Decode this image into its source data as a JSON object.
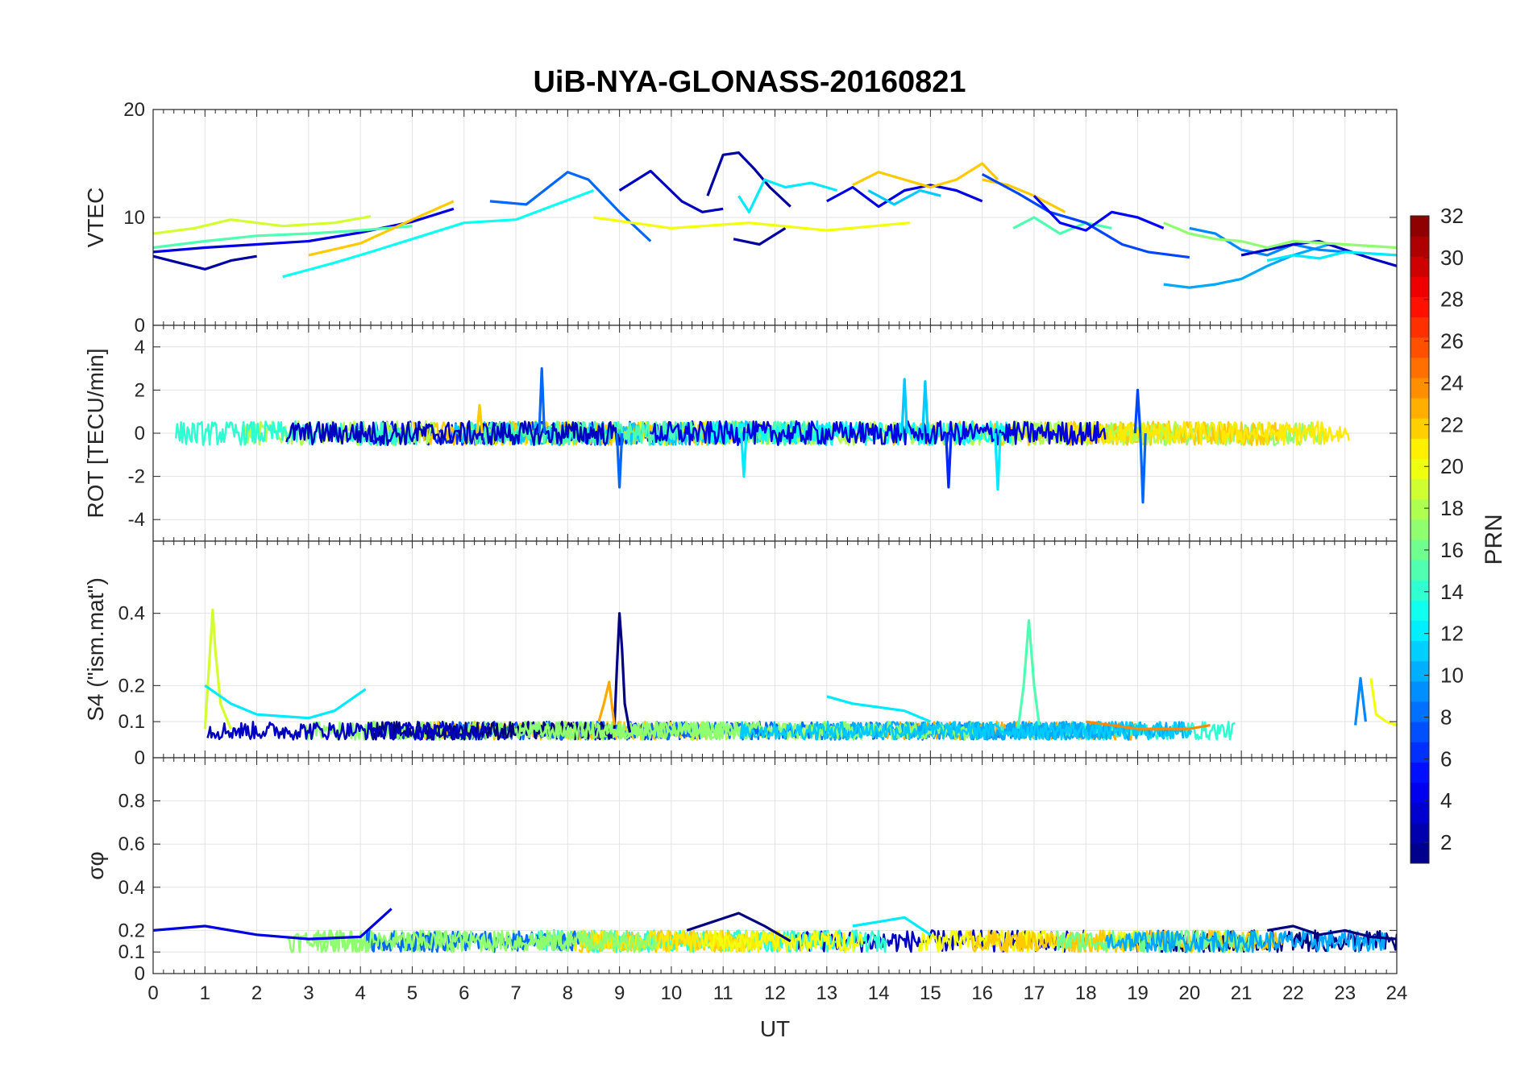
{
  "title": "UiB-NYA-GLONASS-20160821",
  "colorbar": {
    "label": "PRN",
    "ticks": [
      "2",
      "4",
      "6",
      "8",
      "10",
      "12",
      "14",
      "16",
      "18",
      "20",
      "22",
      "24",
      "26",
      "28",
      "30",
      "32"
    ],
    "range": [
      1,
      32
    ],
    "colormap": "jet"
  },
  "chart_data": [
    {
      "type": "line",
      "panel": "vtec",
      "title": "UiB-NYA-GLONASS-20160821",
      "xlabel": "",
      "ylabel": "VTEC",
      "xlim": [
        0,
        24
      ],
      "ylim": [
        0,
        20
      ],
      "yticks": [
        "0",
        "10",
        "20"
      ],
      "grid": true,
      "series": [
        {
          "prn": 2,
          "x": [
            0,
            0.5,
            1,
            1.5,
            2
          ],
          "y": [
            6.4,
            5.8,
            5.2,
            6.0,
            6.4
          ]
        },
        {
          "prn": 4,
          "x": [
            0,
            1,
            2,
            3,
            4,
            5,
            5.8
          ],
          "y": [
            6.8,
            7.2,
            7.5,
            7.8,
            8.6,
            9.6,
            10.8
          ]
        },
        {
          "prn": 8,
          "x": [
            6.5,
            7.2,
            8,
            8.4,
            9,
            9.6
          ],
          "y": [
            11.5,
            11.2,
            14.2,
            13.5,
            10.5,
            7.8
          ]
        },
        {
          "prn": 3,
          "x": [
            9,
            9.6,
            10.2,
            10.6,
            11
          ],
          "y": [
            12.5,
            14.3,
            11.5,
            10.5,
            10.8
          ]
        },
        {
          "prn": 2,
          "x": [
            10.7,
            11,
            11.3,
            11.6,
            11.9,
            12.3
          ],
          "y": [
            12,
            15.8,
            16,
            14.5,
            12.8,
            11
          ]
        },
        {
          "prn": 2,
          "x": [
            11.2,
            11.7,
            12.2
          ],
          "y": [
            8,
            7.5,
            9
          ]
        },
        {
          "prn": 12,
          "x": [
            11.3,
            11.5,
            11.8,
            12.2,
            12.7,
            13.2
          ],
          "y": [
            12,
            10.5,
            13.5,
            12.8,
            13.2,
            12.5
          ]
        },
        {
          "prn": 4,
          "x": [
            13,
            13.5,
            14,
            14.5,
            15,
            15.5,
            16
          ],
          "y": [
            11.5,
            12.8,
            11,
            12.5,
            13,
            12.5,
            11.5
          ]
        },
        {
          "prn": 22,
          "x": [
            13.5,
            14,
            14.5,
            15,
            15.5,
            16,
            16.3
          ],
          "y": [
            13,
            14.2,
            13.5,
            12.8,
            13.5,
            15,
            13.5
          ]
        },
        {
          "prn": 11,
          "x": [
            13.8,
            14.3,
            14.8,
            15.2
          ],
          "y": [
            12.5,
            11.2,
            12.5,
            12
          ]
        },
        {
          "prn": 20,
          "x": [
            8.5,
            10,
            11.5,
            13,
            14.6
          ],
          "y": [
            10,
            9,
            9.5,
            8.8,
            9.5
          ]
        },
        {
          "prn": 15,
          "x": [
            0,
            1,
            2,
            3,
            4,
            5
          ],
          "y": [
            7.2,
            7.8,
            8.3,
            8.5,
            8.8,
            9.2
          ]
        },
        {
          "prn": 19,
          "x": [
            0,
            0.8,
            1.5,
            2.5,
            3.5,
            4.2
          ],
          "y": [
            8.5,
            9,
            9.8,
            9.2,
            9.5,
            10.1
          ]
        },
        {
          "prn": 13,
          "x": [
            2.5,
            3.5,
            4.2,
            5,
            6,
            7,
            8.5
          ],
          "y": [
            4.5,
            5.8,
            6.8,
            8,
            9.5,
            9.8,
            12.5
          ]
        },
        {
          "prn": 22,
          "x": [
            3,
            4,
            5,
            5.8
          ],
          "y": [
            6.5,
            7.6,
            9.8,
            11.5
          ]
        },
        {
          "prn": 15,
          "x": [
            16.6,
            17,
            17.5,
            18,
            18.5
          ],
          "y": [
            9,
            10,
            8.5,
            9.5,
            9
          ]
        },
        {
          "prn": 22,
          "x": [
            16,
            16.5,
            17,
            17.6
          ],
          "y": [
            13.5,
            13,
            12,
            10.5
          ]
        },
        {
          "prn": 7,
          "x": [
            16,
            16.7,
            17.3,
            18,
            18.7,
            19.2,
            20
          ],
          "y": [
            14,
            12.2,
            10.5,
            9.5,
            7.5,
            6.8,
            6.3
          ]
        },
        {
          "prn": 5,
          "x": [
            17,
            17.5,
            18,
            18.5,
            19,
            19.5
          ],
          "y": [
            12,
            9.5,
            8.8,
            10.5,
            10,
            9
          ]
        },
        {
          "prn": 10,
          "x": [
            19.5,
            20,
            20.5,
            21,
            21.5,
            22,
            22.7
          ],
          "y": [
            3.8,
            3.5,
            3.8,
            4.3,
            5.5,
            6.5,
            7.5
          ]
        },
        {
          "prn": 9,
          "x": [
            20,
            20.5,
            21,
            21.5,
            22,
            22.5,
            23
          ],
          "y": [
            9,
            8.5,
            7,
            6.5,
            7.5,
            7,
            6.8
          ]
        },
        {
          "prn": 3,
          "x": [
            21,
            21.5,
            22,
            22.5,
            23,
            23.5,
            24
          ],
          "y": [
            6.5,
            7,
            7.5,
            7.8,
            7,
            6.2,
            5.5
          ]
        },
        {
          "prn": 17,
          "x": [
            19.5,
            20,
            20.5,
            21,
            21.5,
            22,
            23,
            24
          ],
          "y": [
            9.5,
            8.5,
            8,
            7.8,
            7.2,
            7.8,
            7.5,
            7.2
          ]
        },
        {
          "prn": 12,
          "x": [
            21.5,
            22,
            22.5,
            23,
            24
          ],
          "y": [
            6,
            6.5,
            6.2,
            6.8,
            6.5
          ]
        }
      ]
    },
    {
      "type": "line",
      "panel": "rot",
      "xlabel": "",
      "ylabel": "ROT [TECU/min]",
      "xlim": [
        0,
        24
      ],
      "ylim": [
        -5,
        5
      ],
      "yticks": [
        "-4",
        "-2",
        "0",
        "2",
        "4"
      ],
      "grid": true,
      "series": [
        {
          "prn": 8,
          "x": [
            7.45,
            7.5,
            7.55
          ],
          "y": [
            0,
            3,
            0
          ]
        },
        {
          "prn": 8,
          "x": [
            8.95,
            9,
            9.05
          ],
          "y": [
            0,
            -2.5,
            0
          ]
        },
        {
          "prn": 11,
          "x": [
            14.45,
            14.5,
            14.55
          ],
          "y": [
            0,
            2.5,
            0
          ]
        },
        {
          "prn": 11,
          "x": [
            14.85,
            14.9,
            14.95
          ],
          "y": [
            0,
            2.4,
            0
          ]
        },
        {
          "prn": 6,
          "x": [
            15.3,
            15.35,
            15.4
          ],
          "y": [
            0,
            -2.5,
            0
          ]
        },
        {
          "prn": 12,
          "x": [
            16.25,
            16.3,
            16.35
          ],
          "y": [
            0,
            -2.6,
            0
          ]
        },
        {
          "prn": 7,
          "x": [
            18.95,
            19,
            19.05
          ],
          "y": [
            0,
            2,
            0
          ]
        },
        {
          "prn": 8,
          "x": [
            19.05,
            19.1,
            19.15
          ],
          "y": [
            0,
            -3.2,
            0
          ]
        },
        {
          "prn": 12,
          "x": [
            11.35,
            11.4,
            11.45
          ],
          "y": [
            0,
            -2,
            0
          ]
        },
        {
          "prn": 22,
          "x": [
            6.25,
            6.3,
            6.35
          ],
          "y": [
            0,
            1.3,
            0
          ]
        }
      ]
    },
    {
      "type": "line",
      "panel": "s4",
      "xlabel": "",
      "ylabel": "S4 (\"ism.mat\")",
      "xlim": [
        0,
        24
      ],
      "ylim": [
        0,
        0.6
      ],
      "yticks": [
        "0",
        "0.1",
        "0.2",
        "0.4"
      ],
      "grid": true,
      "series": [
        {
          "prn": 19,
          "x": [
            1,
            1.1,
            1.15,
            1.2,
            1.3,
            1.5
          ],
          "y": [
            0.08,
            0.3,
            0.41,
            0.3,
            0.15,
            0.08
          ]
        },
        {
          "prn": 1,
          "x": [
            8.9,
            8.95,
            9,
            9.05,
            9.1,
            9.2
          ],
          "y": [
            0.08,
            0.25,
            0.4,
            0.3,
            0.15,
            0.07
          ]
        },
        {
          "prn": 15,
          "x": [
            16.7,
            16.8,
            16.9,
            17,
            17.1
          ],
          "y": [
            0.09,
            0.2,
            0.38,
            0.2,
            0.09
          ]
        },
        {
          "prn": 23,
          "x": [
            8.6,
            8.7,
            8.8,
            8.9
          ],
          "y": [
            0.1,
            0.15,
            0.21,
            0.09
          ]
        },
        {
          "prn": 12,
          "x": [
            1,
            1.5,
            2,
            3,
            3.5,
            4.1
          ],
          "y": [
            0.2,
            0.15,
            0.12,
            0.11,
            0.13,
            0.19
          ]
        },
        {
          "prn": 12,
          "x": [
            13,
            13.5,
            14,
            14.5,
            15
          ],
          "y": [
            0.17,
            0.15,
            0.14,
            0.13,
            0.1
          ]
        },
        {
          "prn": 9,
          "x": [
            23.2,
            23.3,
            23.4
          ],
          "y": [
            0.09,
            0.22,
            0.1
          ]
        },
        {
          "prn": 20,
          "x": [
            23.5,
            23.6,
            23.8,
            24
          ],
          "y": [
            0.22,
            0.12,
            0.1,
            0.09
          ]
        },
        {
          "prn": 24,
          "x": [
            18,
            18.5,
            19,
            19.5,
            20,
            20.4
          ],
          "y": [
            0.1,
            0.09,
            0.08,
            0.08,
            0.08,
            0.09
          ]
        }
      ]
    },
    {
      "type": "line",
      "panel": "sigma_phi",
      "xlabel": "UT",
      "ylabel": "σφ",
      "xlim": [
        0,
        24
      ],
      "ylim": [
        0,
        1
      ],
      "yticks": [
        "0",
        "0.1",
        "0.2",
        "0.4",
        "0.6",
        "0.8"
      ],
      "xticks": [
        "0",
        "1",
        "2",
        "3",
        "4",
        "5",
        "6",
        "7",
        "8",
        "9",
        "10",
        "11",
        "12",
        "13",
        "14",
        "15",
        "16",
        "17",
        "18",
        "19",
        "20",
        "21",
        "22",
        "23",
        "24"
      ],
      "grid": true,
      "series": [
        {
          "prn": 1,
          "x": [
            10.3,
            10.8,
            11.3,
            11.8,
            12.3
          ],
          "y": [
            0.2,
            0.24,
            0.28,
            0.22,
            0.15
          ]
        },
        {
          "prn": 1,
          "x": [
            21.5,
            22,
            22.5,
            23,
            23.5,
            24
          ],
          "y": [
            0.2,
            0.22,
            0.18,
            0.2,
            0.17,
            0.16
          ]
        },
        {
          "prn": 12,
          "x": [
            13.5,
            14,
            14.5,
            15
          ],
          "y": [
            0.22,
            0.24,
            0.26,
            0.18
          ]
        },
        {
          "prn": 4,
          "x": [
            0,
            1,
            2,
            3,
            4,
            4.6
          ],
          "y": [
            0.2,
            0.22,
            0.18,
            0.16,
            0.17,
            0.3
          ]
        }
      ]
    }
  ]
}
